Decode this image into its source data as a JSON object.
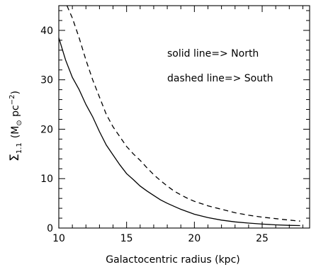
{
  "chart_data": {
    "type": "line",
    "xlabel": "Galactocentric radius (kpc)",
    "ylabel_symbol": "Σ",
    "ylabel_subscript": "1.1",
    "ylabel_unit_open": "(M",
    "ylabel_unit_sun": "⊙",
    "ylabel_unit_mid": " pc",
    "ylabel_unit_exp": "−2",
    "ylabel_unit_close": ")",
    "xlim": [
      10,
      28.5
    ],
    "ylim": [
      0,
      45
    ],
    "xticks": [
      10,
      15,
      20,
      25
    ],
    "yticks": [
      0,
      10,
      20,
      30,
      40
    ],
    "xminor": [
      11,
      12,
      13,
      14,
      16,
      17,
      18,
      19,
      21,
      22,
      23,
      24,
      26,
      27,
      28
    ],
    "yminor": [
      2,
      4,
      6,
      8,
      12,
      14,
      16,
      18,
      22,
      24,
      26,
      28,
      32,
      34,
      36,
      38,
      42,
      44
    ],
    "annotations": [
      "solid line=> North",
      "dashed line=> South"
    ],
    "series": [
      {
        "style": "solid",
        "x": [
          10,
          10.5,
          11,
          11.5,
          12,
          12.5,
          13,
          13.5,
          14,
          14.5,
          15,
          15.5,
          16,
          16.5,
          17,
          17.5,
          18,
          18.5,
          19,
          19.5,
          20,
          21,
          22,
          23,
          24,
          25,
          26,
          27,
          27.8
        ],
        "y": [
          38.5,
          34,
          30.5,
          28,
          25,
          22.5,
          19.5,
          16.8,
          14.8,
          12.8,
          11,
          9.8,
          8.5,
          7.5,
          6.6,
          5.7,
          5.0,
          4.4,
          3.8,
          3.3,
          2.8,
          2.1,
          1.6,
          1.25,
          1.0,
          0.8,
          0.65,
          0.55,
          0.5
        ]
      },
      {
        "style": "dashed",
        "x": [
          10.6,
          11,
          11.5,
          12,
          12.5,
          13,
          13.5,
          14,
          14.5,
          15,
          15.5,
          16,
          16.5,
          17,
          17.5,
          18,
          18.5,
          19,
          19.5,
          20,
          21,
          22,
          23,
          24,
          25,
          26,
          27,
          27.8
        ],
        "y": [
          45,
          42.5,
          38.5,
          34,
          30,
          26.5,
          23,
          20.5,
          18.5,
          16.5,
          15,
          13.7,
          12.2,
          10.8,
          9.6,
          8.5,
          7.5,
          6.7,
          6.0,
          5.4,
          4.5,
          3.8,
          3.1,
          2.6,
          2.2,
          1.9,
          1.6,
          1.4
        ]
      }
    ]
  }
}
